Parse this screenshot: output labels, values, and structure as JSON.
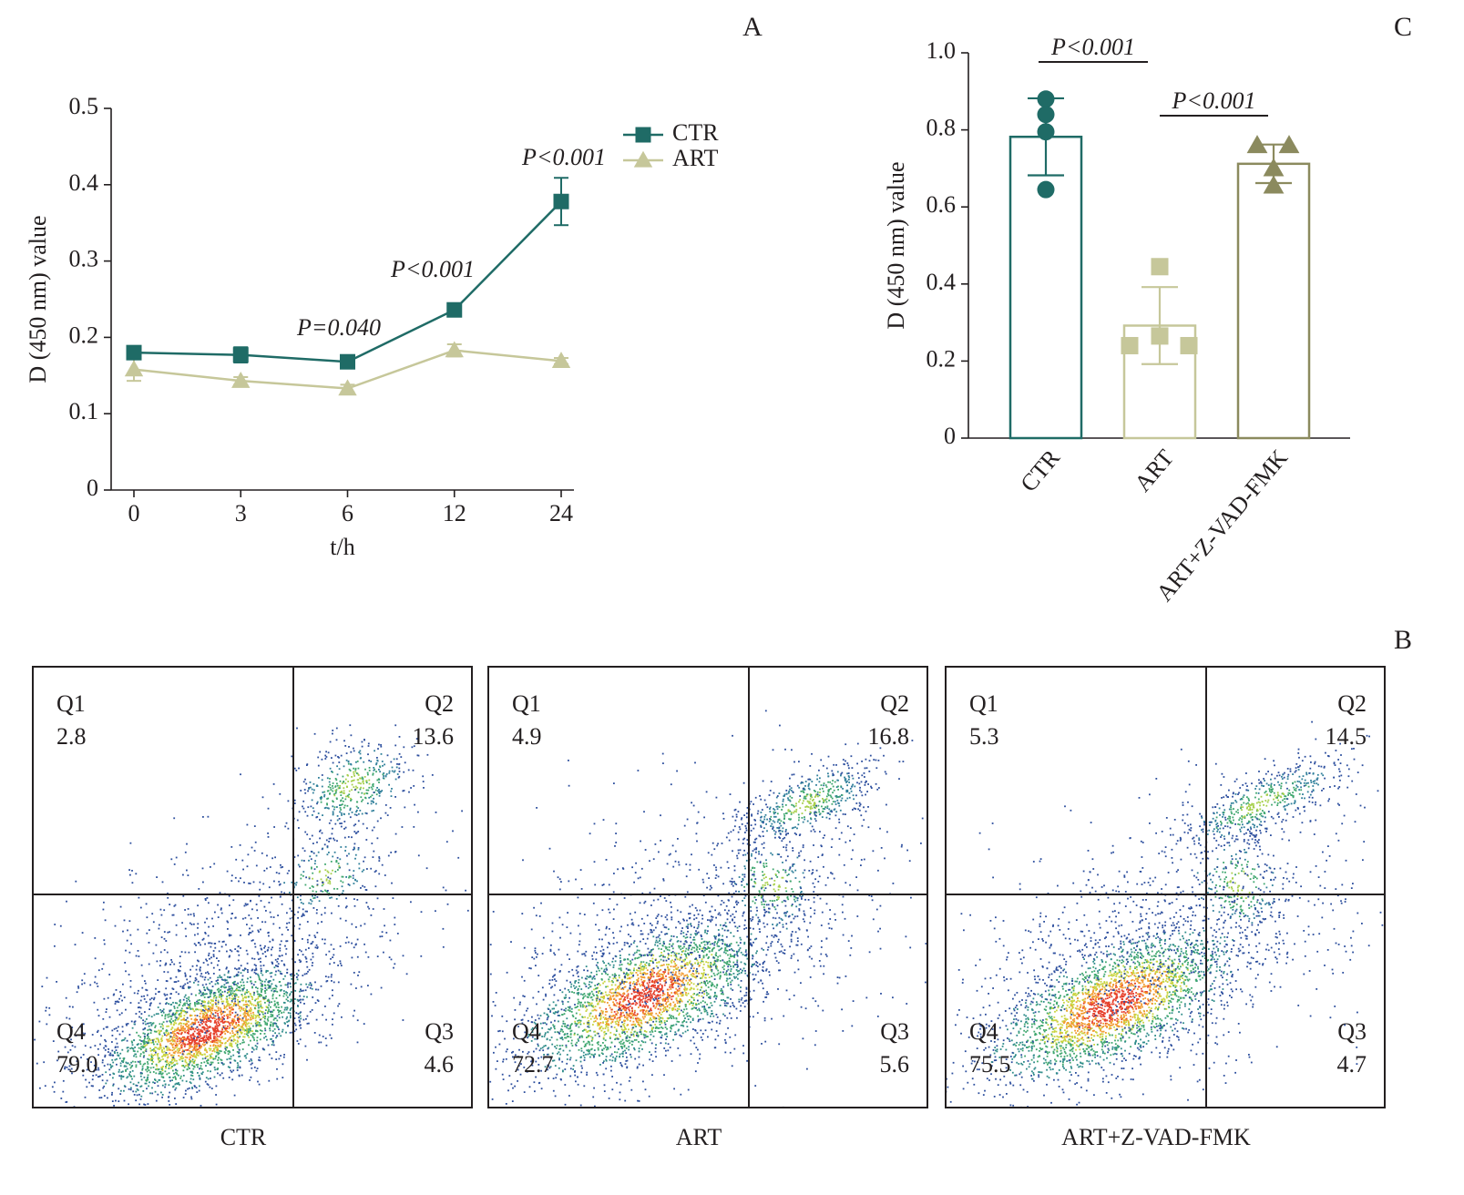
{
  "chart_data": [
    {
      "type": "line",
      "label": "A",
      "x_label": "t/h",
      "y_label": "D (450 nm) value",
      "categories": [
        "0",
        "3",
        "6",
        "12",
        "24"
      ],
      "ylim": [
        0,
        0.5
      ],
      "yticks": [
        0,
        0.1,
        0.2,
        0.3,
        0.4,
        0.5
      ],
      "series": [
        {
          "name": "CTR",
          "color": "#1f6b66",
          "marker": "square",
          "values": [
            0.18,
            0.177,
            0.168,
            0.236,
            0.378
          ],
          "errors": [
            0.008,
            0.01,
            0.006,
            0.006,
            0.031
          ]
        },
        {
          "name": "ART",
          "color": "#c6c79a",
          "marker": "triangle",
          "values": [
            0.158,
            0.143,
            0.133,
            0.183,
            0.169
          ],
          "errors": [
            0.015,
            0.005,
            0.005,
            0.008,
            0.004
          ]
        }
      ],
      "annotations": [
        "P=0.040",
        "P<0.001",
        "P<0.001"
      ]
    },
    {
      "type": "bar",
      "label": "C",
      "y_label": "D (450 nm) value",
      "categories": [
        "CTR",
        "ART",
        "ART+Z-VAD-FMK"
      ],
      "values": [
        0.782,
        0.292,
        0.712
      ],
      "errors": [
        0.1,
        0.1,
        0.05
      ],
      "points": [
        [
          0.88,
          0.84,
          0.795,
          0.645
        ],
        [
          0.445,
          0.265,
          0.24,
          0.24
        ],
        [
          0.76,
          0.76,
          0.7,
          0.655
        ]
      ],
      "colors": [
        "#1f6b66",
        "#c6c79a",
        "#8b8a5e"
      ],
      "markers": [
        "circle",
        "square",
        "triangle"
      ],
      "ylim": [
        0,
        1
      ],
      "yticks": [
        0,
        0.2,
        0.4,
        0.6,
        0.8,
        {
          "value": 1,
          "label": "1.0"
        }
      ],
      "comparisons": [
        "P<0.001",
        "P<0.001"
      ]
    },
    {
      "type": "quadrant",
      "label": "B",
      "quadrants": [
        "Q1",
        "Q2",
        "Q3",
        "Q4"
      ],
      "panels": [
        {
          "name": "CTR",
          "values": [
            2.8,
            13.6,
            4.6,
            79.0
          ],
          "value_labels": [
            "2.8",
            "13.6",
            "4.6",
            "79.0"
          ]
        },
        {
          "name": "ART",
          "values": [
            4.9,
            16.8,
            5.6,
            72.7
          ],
          "value_labels": [
            "4.9",
            "16.8",
            "5.6",
            "72.7"
          ]
        },
        {
          "name": "ART+Z-VAD-FMK",
          "values": [
            5.3,
            14.5,
            4.7,
            75.5
          ],
          "value_labels": [
            "5.3",
            "14.5",
            "4.7",
            "75.5"
          ]
        }
      ]
    }
  ]
}
